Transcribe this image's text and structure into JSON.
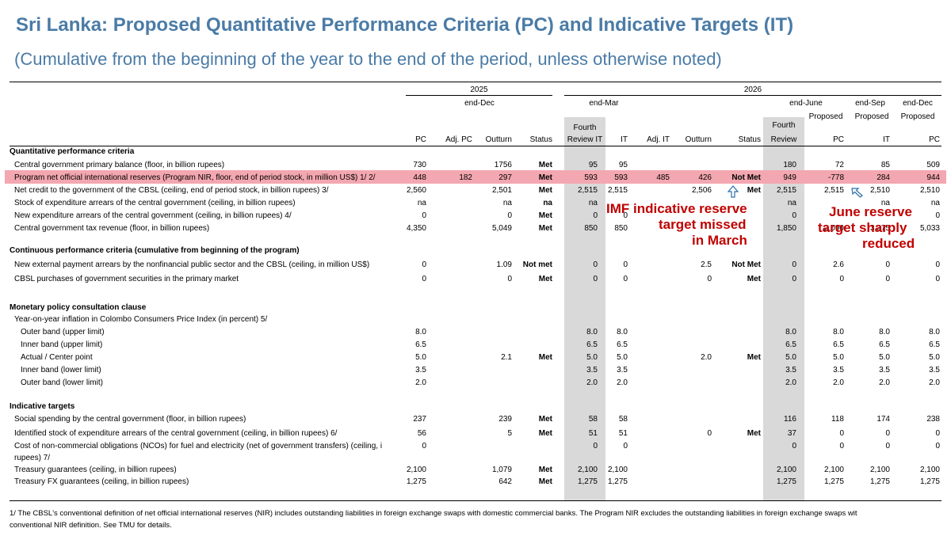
{
  "title": "Sri Lanka: Proposed Quantitative Performance Criteria (PC) and Indicative Targets (IT)",
  "subtitle": "(Cumulative from the beginning of the year to the end of the period, unless otherwise noted)",
  "header": {
    "year_2025": "2025",
    "year_2026": "2026",
    "end_dec": "end-Dec",
    "end_mar": "end-Mar",
    "end_june": "end-June",
    "end_sep": "end-Sep",
    "end_dec_2026": "end-Dec",
    "proposed": "Proposed",
    "fourth": "Fourth",
    "review_it": "Review IT",
    "review": "Review",
    "cols": [
      "PC",
      "Adj. PC",
      "Outturn",
      "Status",
      "",
      "IT",
      "Adj. IT",
      "Outturn",
      "Status",
      "",
      "PC",
      "IT",
      "PC"
    ]
  },
  "rows": [
    {
      "label": "Quantitative performance criteria",
      "section": true,
      "v": [
        "",
        "",
        "",
        "",
        "",
        "",
        "",
        "",
        "",
        "",
        "",
        "",
        ""
      ]
    },
    {
      "label": "Central government primary balance (floor, in billion rupees)",
      "v": [
        "730",
        "",
        "1756",
        "Met",
        "95",
        "95",
        "",
        "",
        "",
        "180",
        "72",
        "85",
        "509"
      ]
    },
    {
      "label": "Program net official international reserves (Program NIR, floor, end of period stock, in million US$) 1/ 2/",
      "v": [
        "448",
        "182",
        "297",
        "Met",
        "593",
        "593",
        "485",
        "426",
        "Not Met",
        "949",
        "-778",
        "284",
        "944"
      ]
    },
    {
      "label": "Net credit to the government of the CBSL (ceiling, end of period stock, in billion rupees) 3/",
      "v": [
        "2,560",
        "",
        "2,501",
        "Met",
        "2,515",
        "2,515",
        "",
        "2,506",
        "Met",
        "2,515",
        "2,515",
        "2,510",
        "2,510"
      ]
    },
    {
      "label": "Stock of expenditure arrears of the central government (ceiling, in billion rupees)",
      "v": [
        "na",
        "",
        "na",
        "na",
        "na",
        "",
        "",
        "",
        "",
        "na",
        "",
        "na",
        "na"
      ]
    },
    {
      "label": "New expenditure arrears of the central government (ceiling, in billion rupees) 4/",
      "v": [
        "0",
        "",
        "0",
        "Met",
        "0",
        "0",
        "",
        "",
        "",
        "0",
        "",
        "",
        "0"
      ]
    },
    {
      "label": "Central government tax revenue (floor, in billion rupees)",
      "v": [
        "4,350",
        "",
        "5,049",
        "Met",
        "850",
        "850",
        "",
        "",
        "",
        "1,850",
        "2,090",
        "3,375",
        "5,033"
      ]
    },
    {
      "label": "Continuous performance criteria (cumulative from beginning of the program)",
      "section": true,
      "v": [
        "",
        "",
        "",
        "",
        "",
        "",
        "",
        "",
        "",
        "",
        "",
        "",
        ""
      ]
    },
    {
      "label": "New external payment arrears by the nonfinancial public sector and the CBSL (ceiling, in million US$)",
      "v": [
        "0",
        "",
        "1.09",
        "Not met",
        "0",
        "0",
        "",
        "2.5",
        "Not Met",
        "0",
        "2.6",
        "0",
        "0"
      ]
    },
    {
      "label": "CBSL purchases of government securities in the primary market",
      "v": [
        "0",
        "",
        "0",
        "Met",
        "0",
        "0",
        "",
        "0",
        "Met",
        "0",
        "0",
        "0",
        "0"
      ]
    },
    {
      "label": "Monetary policy consultation clause",
      "section": true,
      "v": [
        "",
        "",
        "",
        "",
        "",
        "",
        "",
        "",
        "",
        "",
        "",
        "",
        ""
      ]
    },
    {
      "label": "Year-on-year inflation in Colombo Consumers Price Index (in percent) 5/",
      "v": [
        "",
        "",
        "",
        "",
        "",
        "",
        "",
        "",
        "",
        "",
        "",
        "",
        ""
      ]
    },
    {
      "label": "Outer band (upper limit)",
      "indent": true,
      "v": [
        "8.0",
        "",
        "",
        "",
        "8.0",
        "8.0",
        "",
        "",
        "",
        "8.0",
        "8.0",
        "8.0",
        "8.0"
      ]
    },
    {
      "label": "Inner band (upper limit)",
      "indent": true,
      "v": [
        "6.5",
        "",
        "",
        "",
        "6.5",
        "6.5",
        "",
        "",
        "",
        "6.5",
        "6.5",
        "6.5",
        "6.5"
      ]
    },
    {
      "label": "Actual / Center point",
      "indent": true,
      "v": [
        "5.0",
        "",
        "2.1",
        "Met",
        "5.0",
        "5.0",
        "",
        "2.0",
        "Met",
        "5.0",
        "5.0",
        "5.0",
        "5.0"
      ]
    },
    {
      "label": "Inner band (lower limit)",
      "indent": true,
      "v": [
        "3.5",
        "",
        "",
        "",
        "3.5",
        "3.5",
        "",
        "",
        "",
        "3.5",
        "3.5",
        "3.5",
        "3.5"
      ]
    },
    {
      "label": "Outer band (lower limit)",
      "indent": true,
      "v": [
        "2.0",
        "",
        "",
        "",
        "2.0",
        "2.0",
        "",
        "",
        "",
        "2.0",
        "2.0",
        "2.0",
        "2.0"
      ]
    },
    {
      "label": "Indicative targets",
      "section": true,
      "v": [
        "",
        "",
        "",
        "",
        "",
        "",
        "",
        "",
        "",
        "",
        "",
        "",
        ""
      ]
    },
    {
      "label": "Social spending by the central government (floor, in billion rupees)",
      "v": [
        "237",
        "",
        "239",
        "Met",
        "58",
        "58",
        "",
        "",
        "",
        "116",
        "118",
        "174",
        "238"
      ]
    },
    {
      "label": "Identified stock of expenditure arrears of the central government (ceiling, in billion rupees) 6/",
      "v": [
        "56",
        "",
        "5",
        "Met",
        "51",
        "51",
        "",
        "0",
        "Met",
        "37",
        "0",
        "0",
        "0"
      ]
    },
    {
      "label": "Cost of non-commercial obligations (NCOs) for fuel and electricity (net of government transfers) (ceiling, i",
      "v": [
        "0",
        "",
        "",
        "",
        "0",
        "0",
        "",
        "",
        "",
        "0",
        "0",
        "0",
        "0"
      ]
    },
    {
      "label": "rupees) 7/",
      "v": [
        "",
        "",
        "",
        "",
        "",
        "",
        "",
        "",
        "",
        "",
        "",
        "",
        ""
      ]
    },
    {
      "label": "Treasury guarantees (ceiling, in billion rupees)",
      "v": [
        "2,100",
        "",
        "1,079",
        "Met",
        "2,100",
        "2,100",
        "",
        "",
        "",
        "2,100",
        "2,100",
        "2,100",
        "2,100"
      ]
    },
    {
      "label": "Treasury FX guarantees (ceiling, in billion rupees)",
      "v": [
        "1,275",
        "",
        "642",
        "Met",
        "1,275",
        "1,275",
        "",
        "",
        "",
        "1,275",
        "1,275",
        "1,275",
        "1,275"
      ]
    }
  ],
  "annotations": {
    "march": [
      "IMF indicative reserve",
      "target missed",
      "in March"
    ],
    "june": [
      "June reserve",
      "target sharply",
      "reduced"
    ]
  },
  "footnote": {
    "line1": "1/ The CBSL's conventional definition of net official international reserves (NIR) includes outstanding liabilities in foreign exchange swaps with domestic commercial banks. The Program NIR excludes the outstanding liabilities in foreign exchange swaps wit",
    "line2": "conventional NIR definition. See TMU for details."
  },
  "colors": {
    "title": "#4a7ba6",
    "highlight": "#f3a7b0",
    "shade": "#d9d9d9",
    "annotation": "#c00000"
  }
}
